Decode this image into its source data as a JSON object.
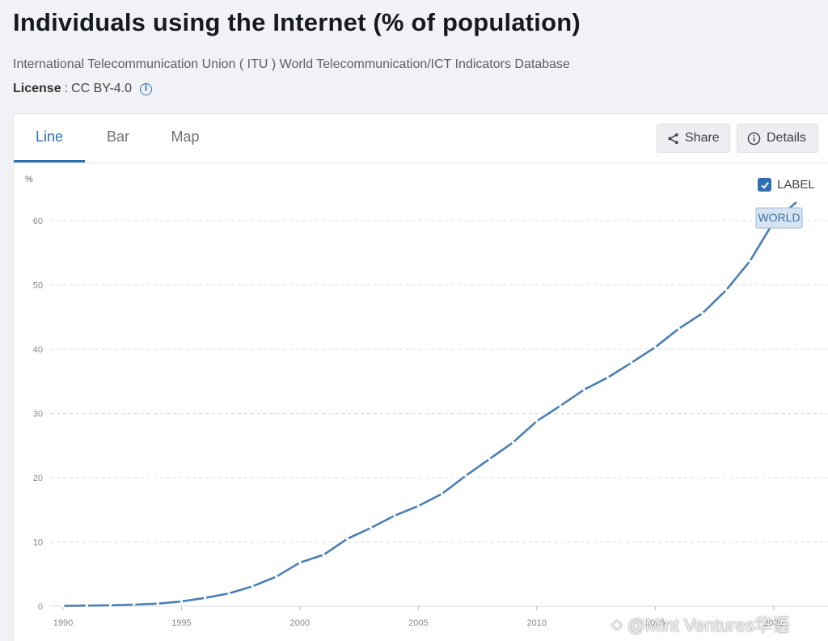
{
  "header": {
    "title": "Individuals using the Internet (% of population)",
    "source": "International Telecommunication Union ( ITU ) World Telecommunication/ICT Indicators Database",
    "license_key": "License",
    "license_sep": ":",
    "license_value": "CC BY-4.0",
    "info_icon": "info-icon"
  },
  "tabs": [
    {
      "label": "Line",
      "active": true
    },
    {
      "label": "Bar",
      "active": false
    },
    {
      "label": "Map",
      "active": false
    }
  ],
  "actions": {
    "share_label": "Share",
    "share_icon": "share-icon",
    "details_label": "Details",
    "details_icon": "info-circle-icon"
  },
  "label_toggle": {
    "label": "LABEL",
    "checked": true
  },
  "colors": {
    "accent": "#2f6fb6",
    "series": "#4a7fb5",
    "grid": "#d9dce1"
  },
  "watermark": {
    "icon": "diamond-logo-icon",
    "text": "@Mint Ventures华语"
  },
  "chart_data": {
    "type": "line",
    "title": "",
    "xlabel": "",
    "ylabel": "%",
    "xlim": [
      1990,
      2021
    ],
    "ylim": [
      0,
      65
    ],
    "x_ticks": [
      1990,
      1995,
      2000,
      2005,
      2010,
      2015,
      2020
    ],
    "y_ticks": [
      0,
      10,
      20,
      30,
      40,
      50,
      60
    ],
    "grid": "horizontal dashed",
    "series": [
      {
        "name": "WORLD",
        "x": [
          1990,
          1991,
          1992,
          1993,
          1994,
          1995,
          1996,
          1997,
          1998,
          1999,
          2000,
          2001,
          2002,
          2003,
          2004,
          2005,
          2006,
          2007,
          2008,
          2009,
          2010,
          2011,
          2012,
          2013,
          2014,
          2015,
          2016,
          2017,
          2018,
          2019,
          2020,
          2021
        ],
        "values": [
          0.05,
          0.1,
          0.15,
          0.25,
          0.4,
          0.75,
          1.3,
          2.0,
          3.1,
          4.6,
          6.8,
          8.0,
          10.5,
          12.2,
          14.1,
          15.6,
          17.5,
          20.3,
          22.9,
          25.5,
          28.8,
          31.2,
          33.7,
          35.6,
          37.9,
          40.3,
          43.2,
          45.6,
          49.2,
          53.7,
          59.8,
          63.0
        ]
      }
    ]
  }
}
